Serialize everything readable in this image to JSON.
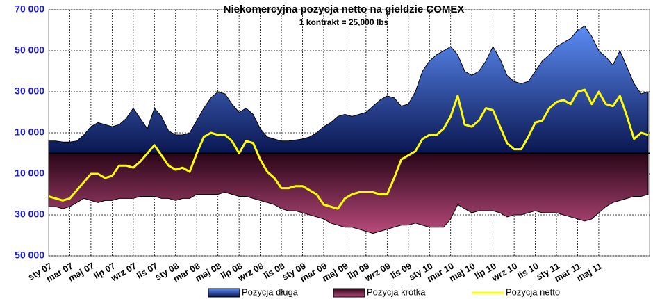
{
  "chart_data": {
    "type": "area",
    "title": "Niekomercyjna pozycja netto na gieldzie COMEX",
    "subtitle": "1 kontrakt = 25,000 lbs",
    "categories": [
      "sty 07",
      null,
      null,
      "mar 07",
      null,
      null,
      "maj 07",
      null,
      null,
      "lip 07",
      null,
      null,
      "wrz 07",
      null,
      null,
      "lis 07",
      null,
      null,
      "sty 08",
      null,
      null,
      "mar 08",
      null,
      null,
      "maj 08",
      null,
      null,
      "lip 08",
      null,
      null,
      "wrz 08",
      null,
      null,
      "lis 08",
      null,
      null,
      "sty 09",
      null,
      null,
      "mar 09",
      null,
      null,
      "maj 09",
      null,
      null,
      "lip 09",
      null,
      null,
      "wrz 09",
      null,
      null,
      "lis 09",
      null,
      null,
      "sty 10",
      null,
      null,
      "mar 10",
      null,
      null,
      "maj 10",
      null,
      null,
      "lip 10",
      null,
      null,
      "wrz 10",
      null,
      null,
      "lis 10",
      null,
      null,
      "sty 11",
      null,
      null,
      "mar 11",
      null,
      null,
      "maj 11",
      null,
      null,
      null,
      null,
      null,
      null,
      null
    ],
    "series": [
      {
        "name": "Pozycja długa",
        "kind": "area",
        "color": "#2b55d8",
        "values": [
          6000,
          6000,
          5500,
          5500,
          6000,
          9000,
          13000,
          15000,
          14000,
          13000,
          14000,
          17000,
          22000,
          17000,
          12000,
          22000,
          18000,
          11000,
          9000,
          9000,
          10000,
          16000,
          22000,
          27000,
          30000,
          29000,
          24000,
          20000,
          22000,
          19000,
          12000,
          8000,
          7000,
          6000,
          6000,
          6500,
          7000,
          8000,
          10000,
          13000,
          15000,
          18000,
          19000,
          18000,
          19000,
          20000,
          23000,
          26000,
          28000,
          27000,
          23000,
          24000,
          30000,
          40000,
          45000,
          48000,
          50000,
          52000,
          48000,
          40000,
          38000,
          40000,
          45000,
          52000,
          46000,
          38000,
          35000,
          34000,
          35000,
          40000,
          45000,
          48000,
          52000,
          54000,
          56000,
          60000,
          62000,
          57000,
          50000,
          47000,
          43000,
          50000,
          42000,
          34000,
          29000,
          30000
        ]
      },
      {
        "name": "Pozycja krótka",
        "kind": "area",
        "color": "#7a1f4c",
        "values": [
          -26000,
          -26000,
          -27000,
          -26000,
          -24000,
          -22000,
          -23000,
          -24000,
          -23000,
          -23000,
          -22000,
          -22000,
          -22000,
          -21000,
          -21000,
          -21000,
          -22000,
          -22000,
          -23000,
          -22000,
          -22000,
          -20000,
          -20000,
          -20000,
          -20000,
          -19000,
          -20000,
          -21000,
          -21000,
          -22000,
          -23000,
          -24000,
          -25000,
          -27000,
          -28000,
          -28000,
          -29000,
          -30000,
          -31000,
          -32000,
          -34000,
          -35000,
          -36000,
          -36000,
          -37000,
          -38000,
          -39000,
          -38000,
          -37000,
          -36000,
          -35000,
          -35000,
          -34000,
          -35000,
          -36000,
          -36000,
          -36000,
          -32000,
          -25000,
          -27000,
          -29000,
          -28000,
          -28000,
          -28000,
          -29000,
          -31000,
          -30000,
          -30000,
          -29000,
          -28000,
          -29000,
          -29000,
          -29000,
          -30000,
          -31000,
          -32000,
          -33000,
          -32000,
          -29000,
          -26000,
          -24000,
          -23000,
          -22000,
          -21000,
          -21000,
          -20000
        ]
      },
      {
        "name": "Pozycja netto",
        "kind": "line",
        "color": "#ffff00",
        "values": [
          -21000,
          -22000,
          -23000,
          -22000,
          -18000,
          -14000,
          -10000,
          -10000,
          -12000,
          -11000,
          -6000,
          -6000,
          -7000,
          -4000,
          0,
          4000,
          -1000,
          -6000,
          -8000,
          -7000,
          -9000,
          0,
          8000,
          10000,
          9000,
          9000,
          6000,
          0,
          6000,
          5000,
          -3000,
          -9000,
          -12000,
          -17000,
          -17000,
          -16000,
          -16000,
          -18000,
          -20000,
          -25000,
          -26000,
          -27000,
          -22000,
          -20000,
          -19000,
          -19000,
          -19000,
          -20000,
          -20000,
          -12000,
          -3000,
          -1000,
          1000,
          7000,
          9000,
          9000,
          12000,
          18000,
          28000,
          14000,
          13000,
          16000,
          22000,
          21000,
          13000,
          5000,
          2000,
          2000,
          8000,
          15000,
          16000,
          22000,
          25000,
          26000,
          24000,
          30000,
          31000,
          24000,
          30000,
          24000,
          23000,
          28000,
          18000,
          7000,
          10000,
          9000
        ]
      }
    ],
    "ylim": [
      -50000,
      70000
    ],
    "yticks": [
      {
        "value": 70000,
        "label": "70 000"
      },
      {
        "value": 50000,
        "label": "50 000"
      },
      {
        "value": 30000,
        "label": "30 000"
      },
      {
        "value": 10000,
        "label": "10 000"
      },
      {
        "value": -10000,
        "label": "10 000"
      },
      {
        "value": -30000,
        "label": "30 000"
      },
      {
        "value": -50000,
        "label": "50 000"
      }
    ],
    "grid": true
  }
}
